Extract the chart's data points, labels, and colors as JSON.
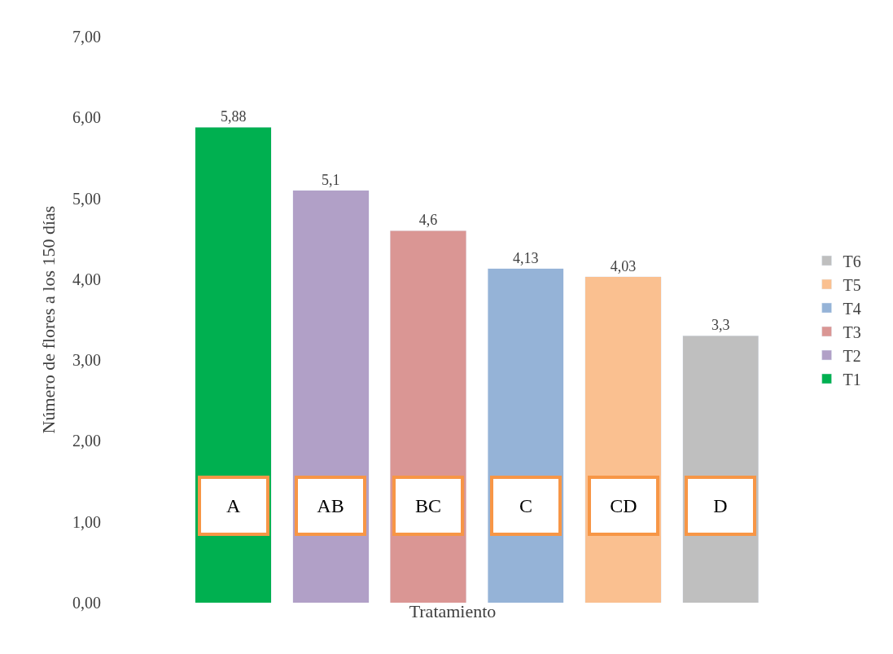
{
  "chart_data": {
    "type": "bar",
    "xlabel": "Tratamiento",
    "ylabel": "Número de flores a los 150 días",
    "categories": [
      null,
      null,
      null,
      null,
      null,
      null
    ],
    "stacked": true,
    "series": [
      {
        "name": "T1",
        "color": "#00b050",
        "values": [
          5.88,
          null,
          null,
          null,
          null,
          null
        ],
        "value_labels": [
          "5,88",
          null,
          null,
          null,
          null,
          null
        ]
      },
      {
        "name": "T2",
        "color": "#b1a0c7",
        "values": [
          null,
          5.1,
          null,
          null,
          null,
          null
        ],
        "value_labels": [
          null,
          "5,1",
          null,
          null,
          null,
          null
        ]
      },
      {
        "name": "T3",
        "color": "#da9694",
        "values": [
          null,
          null,
          4.6,
          null,
          null,
          null
        ],
        "value_labels": [
          null,
          null,
          "4,6",
          null,
          null,
          null
        ]
      },
      {
        "name": "T4",
        "color": "#95b3d7",
        "values": [
          null,
          null,
          null,
          4.13,
          null,
          null
        ],
        "value_labels": [
          null,
          null,
          null,
          "4,13",
          null,
          null
        ]
      },
      {
        "name": "T5",
        "color": "#fac090",
        "values": [
          null,
          null,
          null,
          null,
          4.03,
          null
        ],
        "value_labels": [
          null,
          null,
          null,
          null,
          "4,03",
          null
        ]
      },
      {
        "name": "T6",
        "color": "#bfbfbf",
        "values": [
          null,
          null,
          null,
          null,
          null,
          3.3
        ],
        "value_labels": [
          null,
          null,
          null,
          null,
          null,
          "3,3"
        ]
      }
    ],
    "annotations": [
      "A",
      "AB",
      "BC",
      "C",
      "CD",
      "D"
    ],
    "ylim": [
      0,
      7
    ],
    "yticks": [
      {
        "value": 0,
        "label": "0,00"
      },
      {
        "value": 1,
        "label": "1,00"
      },
      {
        "value": 2,
        "label": "2,00"
      },
      {
        "value": 3,
        "label": "3,00"
      },
      {
        "value": 4,
        "label": "4,00"
      },
      {
        "value": 5,
        "label": "5,00"
      },
      {
        "value": 6,
        "label": "6,00"
      },
      {
        "value": 7,
        "label": "7,00"
      }
    ],
    "legend": "right",
    "tick_labels": "y"
  }
}
